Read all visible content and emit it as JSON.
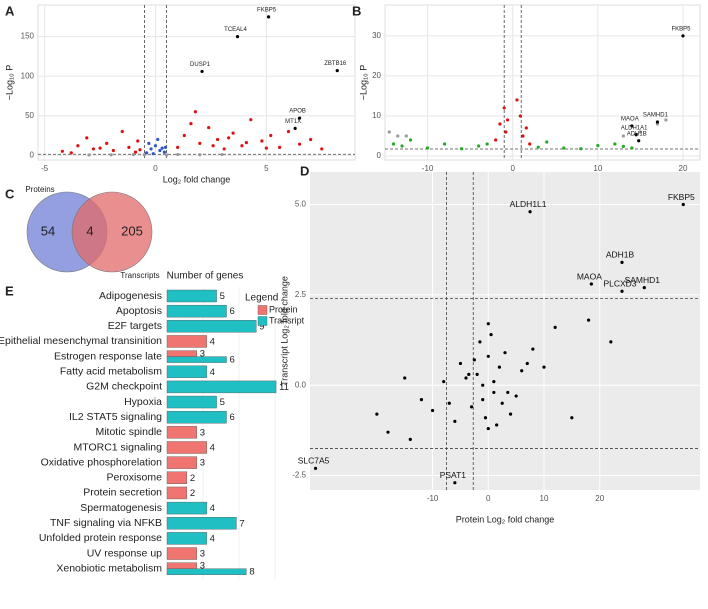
{
  "chart_data": [
    {
      "type": "scatter",
      "panel": "A",
      "xlabel": "Log₂ fold change",
      "ylabel": "−Log₁₀ P",
      "xlim": [
        -5.3,
        9
      ],
      "xticks": [
        -5,
        0,
        5
      ],
      "ylim": [
        -6,
        190
      ],
      "yticks": [
        0,
        50,
        100,
        150
      ],
      "vlines": [
        -0.5,
        0.5
      ],
      "hlines": [
        1.3
      ],
      "grid": true,
      "background": "#ffffff",
      "series": [
        {
          "color": "#999999",
          "x": [
            -2,
            -1,
            1,
            2,
            3,
            -3,
            0.5,
            -0.5
          ],
          "y": [
            0.5,
            0.8,
            1,
            0.6,
            0.9,
            0.4,
            0.3,
            0.7
          ]
        },
        {
          "color": "#3355cc",
          "x": [
            -0.4,
            -0.2,
            0,
            0.2,
            0.4,
            -0.3,
            0.1,
            0.3,
            -0.1,
            0.45
          ],
          "y": [
            3,
            8,
            12,
            6,
            4,
            15,
            20,
            9,
            2,
            10
          ]
        },
        {
          "color": "#dd1111",
          "x": [
            -4.2,
            -3.5,
            -3.1,
            -2.8,
            -2.2,
            -1.9,
            -1.5,
            -1.2,
            -0.9,
            -0.8,
            -0.7,
            1.0,
            1.3,
            1.6,
            2.0,
            2.4,
            2.8,
            3.1,
            3.5,
            3.9,
            4.3,
            4.8,
            5.2,
            5.6,
            6.0,
            6.5,
            7.0,
            7.5,
            -3.8,
            -2.5,
            1.8,
            2.6,
            3.3,
            4.1,
            5.0
          ],
          "y": [
            5,
            12,
            22,
            8,
            15,
            6,
            30,
            10,
            4,
            18,
            7,
            10,
            25,
            40,
            15,
            35,
            20,
            8,
            28,
            12,
            45,
            18,
            25,
            10,
            30,
            14,
            20,
            8,
            3,
            9,
            55,
            12,
            22,
            16,
            9
          ]
        }
      ],
      "labeled_points": [
        {
          "text": "FKBP5",
          "x": 5.1,
          "y": 175
        },
        {
          "text": "TCEAL4",
          "x": 3.7,
          "y": 150
        },
        {
          "text": "ZBTB16",
          "x": 8.2,
          "y": 107
        },
        {
          "text": "DUSP1",
          "x": 2.1,
          "y": 106
        },
        {
          "text": "APOB",
          "x": 6.5,
          "y": 47
        },
        {
          "text": "MT1X",
          "x": 6.3,
          "y": 34
        }
      ]
    },
    {
      "type": "scatter",
      "panel": "B",
      "xlabel": "Log₂ fold change",
      "ylabel": "−Log₁₀ P",
      "xlim": [
        -15,
        22
      ],
      "xticks": [
        -10,
        0,
        10,
        20
      ],
      "ylim": [
        -1,
        37.7
      ],
      "yticks": [
        0,
        10,
        20,
        30
      ],
      "vlines": [
        -1,
        1
      ],
      "hlines": [
        1.75
      ],
      "grid": true,
      "background": "#ffffff",
      "series": [
        {
          "color": "#999999",
          "x": [
            -14.5,
            -13.5,
            13,
            15,
            17,
            -12.5,
            18
          ],
          "y": [
            6,
            5,
            5,
            6,
            8,
            5,
            9
          ]
        },
        {
          "color": "#22aa22",
          "x": [
            -14,
            -13,
            -12,
            -10,
            -8,
            -6,
            -4,
            -3,
            3,
            4,
            6,
            8,
            10,
            12,
            13,
            14
          ],
          "y": [
            3,
            2.5,
            4,
            2,
            3,
            1.8,
            2.5,
            3,
            2.2,
            3.5,
            2,
            1.8,
            2.6,
            3,
            2.4,
            2
          ]
        },
        {
          "color": "#dd1111",
          "x": [
            -1.5,
            -1,
            -0.8,
            0.9,
            1.2,
            1.6,
            2,
            -2,
            0.5,
            -0.6
          ],
          "y": [
            8,
            12,
            6,
            10,
            5,
            7,
            3,
            4,
            14,
            9
          ]
        }
      ],
      "labeled_points": [
        {
          "text": "FKBP5",
          "x": 20,
          "y": 30
        },
        {
          "text": "SAMHD1",
          "x": 17,
          "y": 8.5
        },
        {
          "text": "MAOA",
          "x": 14,
          "y": 7.5
        },
        {
          "text": "ALDH1A1",
          "x": 14.5,
          "y": 5.3
        },
        {
          "text": "ADH1B",
          "x": 14.8,
          "y": 3.8
        }
      ]
    },
    {
      "type": "venn",
      "panel": "C",
      "sets": [
        {
          "name": "Proteins",
          "color": "#6f7fd6"
        },
        {
          "name": "Transcripts",
          "color": "#e26a6a"
        }
      ],
      "values": [
        54,
        4,
        205
      ]
    },
    {
      "type": "scatter",
      "panel": "D",
      "xlabel": "Protein Log₂ fold change",
      "ylabel": "Transcript Log₂ fold change",
      "xlim": [
        -32,
        38
      ],
      "xticks": [
        -10,
        0,
        10,
        20
      ],
      "ylim": [
        -2.9,
        5.9
      ],
      "yticks": [
        {
          "value": 5,
          "label": "5.0"
        },
        {
          "value": 2.5,
          "label": "2.5"
        },
        {
          "value": 0,
          "label": "0.0"
        },
        {
          "value": -2.5,
          "label": "-2.5"
        }
      ],
      "vlines": [
        -7.5,
        -2.7
      ],
      "hlines": [
        2.4,
        -1.75
      ],
      "grid": true,
      "background": "#ebebeb",
      "series": [
        {
          "color": "#000000",
          "x": [
            -2,
            -1,
            0,
            1,
            2,
            -3,
            3,
            -4,
            4,
            -5,
            5,
            -6,
            6,
            -1.5,
            1.5,
            -0.5,
            0.5,
            -2.5,
            2.5,
            -8,
            8,
            -10,
            10,
            -12,
            12,
            -15,
            15,
            -18,
            18,
            -3.5,
            3.5,
            -7,
            7,
            0,
            0,
            -1,
            1,
            -20,
            22,
            -14
          ],
          "y": [
            0.3,
            -0.4,
            0.8,
            -0.2,
            0.5,
            -0.6,
            0.9,
            0.2,
            -0.8,
            0.6,
            -0.3,
            -1.0,
            0.4,
            1.2,
            -1.1,
            -0.9,
            1.4,
            0.7,
            -0.5,
            0.1,
            1.0,
            -0.7,
            0.5,
            -0.4,
            1.6,
            0.2,
            -0.9,
            -1.3,
            1.8,
            0.3,
            -0.2,
            -0.5,
            0.6,
            1.7,
            -1.2,
            0.0,
            0.1,
            -0.8,
            1.2,
            -1.5
          ]
        }
      ],
      "labeled_points": [
        {
          "text": "ALDH1L1",
          "x": 7.5,
          "y": 4.8
        },
        {
          "text": "FKBP5",
          "x": 35,
          "y": 5.0
        },
        {
          "text": "ADH1B",
          "x": 24,
          "y": 3.4
        },
        {
          "text": "MAOA",
          "x": 18.5,
          "y": 2.8
        },
        {
          "text": "PLCXD3",
          "x": 24,
          "y": 2.6
        },
        {
          "text": "SAMHD1",
          "x": 28,
          "y": 2.7
        },
        {
          "text": "SLC7A5",
          "x": -31,
          "y": -2.3
        },
        {
          "text": "PSAT1",
          "x": -6,
          "y": -2.7
        }
      ]
    },
    {
      "type": "bar",
      "panel": "E",
      "title": "Number of genes",
      "legend_title": "Legend",
      "xlim": [
        0,
        12
      ],
      "categories": [
        "Adipogenesis",
        "Apoptosis",
        "E2F targets",
        "Epithelial mesenchymal transinition",
        "Estrogen response late",
        "Fatty acid metabolism",
        "G2M checkpoint",
        "Hypoxia",
        "IL2 STAT5 signaling",
        "Mitotic spindle",
        "MTORC1 signaling",
        "Oxidative phosphorelation",
        "Peroxisome",
        "Protein secretion",
        "Spermatogenesis",
        "TNF signaling via NFKB",
        "Unfolded protein response",
        "UV response up",
        "Xenobiotic metabolism"
      ],
      "series": [
        {
          "name": "Protein",
          "color": "#f07470",
          "values": [
            null,
            null,
            null,
            4,
            3,
            null,
            null,
            null,
            null,
            3,
            4,
            3,
            2,
            2,
            null,
            null,
            null,
            3,
            3
          ]
        },
        {
          "name": "Transript",
          "color": "#1fbfc4",
          "values": [
            5,
            6,
            9,
            null,
            6,
            4,
            11,
            5,
            6,
            null,
            null,
            null,
            null,
            null,
            4,
            7,
            4,
            null,
            8
          ]
        }
      ]
    }
  ]
}
